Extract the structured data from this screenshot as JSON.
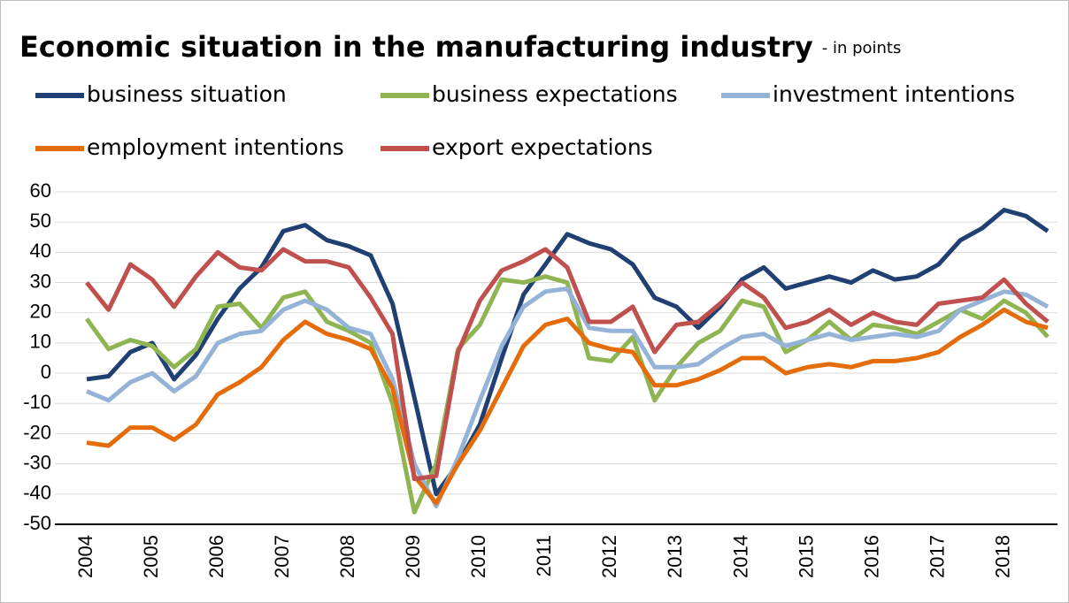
{
  "chart_data": {
    "type": "line",
    "title": "Economic situation in the manufacturing industry",
    "subtitle": "- in points",
    "categories": [
      "2004",
      null,
      null,
      "2005",
      null,
      null,
      "2006",
      null,
      null,
      "2007",
      null,
      null,
      "2008",
      null,
      null,
      "2009",
      null,
      null,
      "2010",
      null,
      null,
      "2011",
      null,
      null,
      "2012",
      null,
      null,
      "2013",
      null,
      null,
      "2014",
      null,
      null,
      "2015",
      null,
      null,
      "2016",
      null,
      null,
      "2017",
      null,
      null,
      "2018",
      null,
      null
    ],
    "series": [
      {
        "name": "business situation",
        "color": "#203f72",
        "values": [
          -2,
          -1,
          7,
          10,
          -2,
          6,
          18,
          28,
          35,
          47,
          49,
          44,
          42,
          39,
          23,
          -8,
          -40,
          -30,
          -17,
          5,
          26,
          36,
          46,
          43,
          41,
          36,
          25,
          22,
          15,
          22,
          31,
          35,
          28,
          30,
          32,
          30,
          34,
          31,
          32,
          36,
          44,
          48,
          54,
          52,
          47
        ]
      },
      {
        "name": "business expectations",
        "color": "#8fb552",
        "values": [
          18,
          8,
          11,
          9,
          2,
          8,
          22,
          23,
          15,
          25,
          27,
          17,
          14,
          10,
          -10,
          -46,
          -30,
          8,
          16,
          31,
          30,
          32,
          30,
          5,
          4,
          12,
          -9,
          2,
          10,
          14,
          24,
          22,
          7,
          11,
          17,
          11,
          16,
          15,
          13,
          17,
          21,
          18,
          24,
          20,
          12
        ]
      },
      {
        "name": "investment intentions",
        "color": "#95b3d7",
        "values": [
          -6,
          -9,
          -3,
          0,
          -6,
          -1,
          10,
          13,
          14,
          21,
          24,
          21,
          15,
          13,
          -2,
          -30,
          -44,
          -28,
          -9,
          9,
          22,
          27,
          28,
          15,
          14,
          14,
          2,
          2,
          3,
          8,
          12,
          13,
          9,
          11,
          13,
          11,
          12,
          13,
          12,
          14,
          21,
          24,
          27,
          26,
          22
        ]
      },
      {
        "name": "employment intentions",
        "color": "#e46c0a",
        "values": [
          -23,
          -24,
          -18,
          -18,
          -22,
          -17,
          -7,
          -3,
          2,
          11,
          17,
          13,
          11,
          8,
          -5,
          -34,
          -43,
          -30,
          -19,
          -5,
          9,
          16,
          18,
          10,
          8,
          7,
          -4,
          -4,
          -2,
          1,
          5,
          5,
          0,
          2,
          3,
          2,
          4,
          4,
          5,
          7,
          12,
          16,
          21,
          17,
          15
        ]
      },
      {
        "name": "export expectations",
        "color": "#c0504d",
        "values": [
          30,
          21,
          36,
          31,
          22,
          32,
          40,
          35,
          34,
          41,
          37,
          37,
          35,
          25,
          13,
          -35,
          -34,
          7,
          24,
          34,
          37,
          41,
          35,
          17,
          17,
          22,
          7,
          16,
          17,
          23,
          30,
          25,
          15,
          17,
          21,
          16,
          20,
          17,
          16,
          23,
          24,
          25,
          31,
          23,
          17
        ]
      }
    ],
    "ylim": [
      -50,
      60
    ],
    "yticks": [
      -50,
      -40,
      -30,
      -20,
      -10,
      0,
      10,
      20,
      30,
      40,
      50,
      60
    ],
    "grid": true
  }
}
